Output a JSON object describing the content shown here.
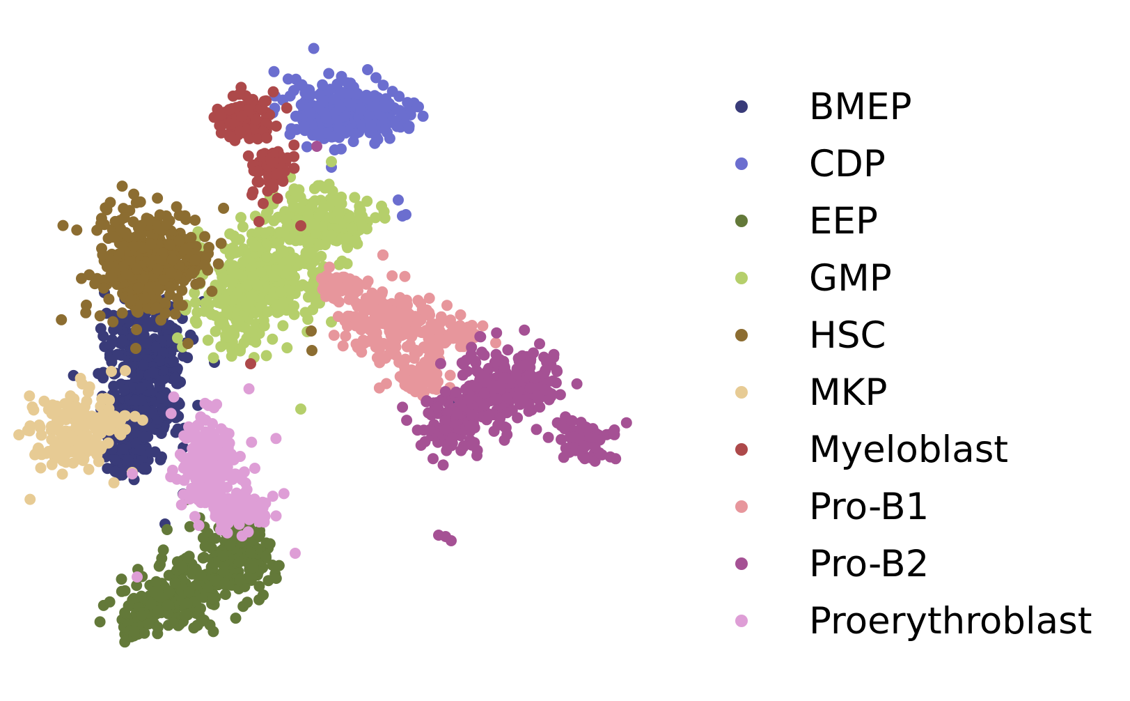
{
  "chart_data": {
    "type": "scatter",
    "title": "",
    "xlabel": "",
    "ylabel": "",
    "axes_visible": false,
    "grid": false,
    "legend_position": "right",
    "series": [
      {
        "name": "BMEP",
        "color": "#393b79",
        "clusters": [
          {
            "cx": 210,
            "cy": 500,
            "sx": 40,
            "sy": 45,
            "n": 200
          },
          {
            "cx": 205,
            "cy": 590,
            "sx": 38,
            "sy": 40,
            "n": 170
          },
          {
            "cx": 180,
            "cy": 650,
            "sx": 25,
            "sy": 20,
            "n": 60
          }
        ],
        "points": [
          [
            150,
            420
          ],
          [
            655,
            575
          ],
          [
            308,
            520
          ],
          [
            263,
            709
          ],
          [
            237,
            752
          ],
          [
            485,
            340
          ]
        ]
      },
      {
        "name": "CDP",
        "color": "#6b6ecf",
        "clusters": [
          {
            "cx": 470,
            "cy": 160,
            "sx": 45,
            "sy": 30,
            "n": 160
          },
          {
            "cx": 545,
            "cy": 165,
            "sx": 35,
            "sy": 25,
            "n": 120
          }
        ],
        "points": [
          [
            528,
            100
          ],
          [
            572,
            287
          ],
          [
            578,
            310
          ],
          [
            583,
            308
          ],
          [
            476,
            240
          ]
        ]
      },
      {
        "name": "EEP",
        "color": "#637939",
        "clusters": [
          {
            "cx": 330,
            "cy": 800,
            "sx": 40,
            "sy": 40,
            "n": 170
          },
          {
            "cx": 250,
            "cy": 860,
            "sx": 45,
            "sy": 30,
            "n": 160
          },
          {
            "cx": 200,
            "cy": 890,
            "sx": 20,
            "sy": 20,
            "n": 40
          }
        ],
        "points": [
          [
            240,
            760
          ],
          [
            268,
            717
          ]
        ]
      },
      {
        "name": "GMP",
        "color": "#b5cf6b",
        "clusters": [
          {
            "cx": 460,
            "cy": 320,
            "sx": 45,
            "sy": 30,
            "n": 180
          },
          {
            "cx": 380,
            "cy": 390,
            "sx": 50,
            "sy": 50,
            "n": 260
          },
          {
            "cx": 330,
            "cy": 450,
            "sx": 35,
            "sy": 40,
            "n": 100
          }
        ],
        "points": [
          [
            432,
            587
          ],
          [
            476,
            462
          ],
          [
            392,
            279
          ],
          [
            476,
            232
          ],
          [
            255,
            485
          ]
        ]
      },
      {
        "name": "HSC",
        "color": "#8c6d31",
        "clusters": [
          {
            "cx": 215,
            "cy": 380,
            "sx": 50,
            "sy": 50,
            "n": 380
          }
        ],
        "points": [
          [
            447,
            475
          ],
          [
            448,
            503
          ],
          [
            300,
            355
          ],
          [
            195,
            500
          ],
          [
            270,
            493
          ]
        ]
      },
      {
        "name": "MKP",
        "color": "#e7cb94",
        "clusters": [
          {
            "cx": 110,
            "cy": 615,
            "sx": 45,
            "sy": 38,
            "n": 170
          }
        ],
        "points": [
          [
            180,
            532
          ],
          [
            160,
            533
          ],
          [
            190,
            678
          ]
        ]
      },
      {
        "name": "Myeloblast",
        "color": "#ad494a",
        "clusters": [
          {
            "cx": 350,
            "cy": 170,
            "sx": 25,
            "sy": 20,
            "n": 140
          },
          {
            "cx": 390,
            "cy": 240,
            "sx": 18,
            "sy": 25,
            "n": 60
          }
        ],
        "points": [
          [
            360,
            522
          ],
          [
            378,
            292
          ],
          [
            432,
            324
          ],
          [
            550,
            366
          ],
          [
            372,
            318
          ]
        ]
      },
      {
        "name": "Pro-B1",
        "color": "#e7969c",
        "clusters": [
          {
            "cx": 560,
            "cy": 465,
            "sx": 45,
            "sy": 30,
            "n": 200
          },
          {
            "cx": 600,
            "cy": 540,
            "sx": 25,
            "sy": 25,
            "n": 60
          },
          {
            "cx": 490,
            "cy": 410,
            "sx": 20,
            "sy": 15,
            "n": 50
          },
          {
            "cx": 650,
            "cy": 480,
            "sx": 25,
            "sy": 12,
            "n": 40
          }
        ],
        "points": [
          [
            678,
            467
          ],
          [
            712,
            492
          ],
          [
            550,
            366
          ]
        ]
      },
      {
        "name": "Pro-B2",
        "color": "#a55194",
        "clusters": [
          {
            "cx": 740,
            "cy": 545,
            "sx": 50,
            "sy": 35,
            "n": 200
          },
          {
            "cx": 650,
            "cy": 610,
            "sx": 35,
            "sy": 30,
            "n": 120
          },
          {
            "cx": 840,
            "cy": 630,
            "sx": 25,
            "sy": 18,
            "n": 70
          }
        ],
        "points": [
          [
            630,
            768
          ],
          [
            640,
            770
          ],
          [
            648,
            776
          ],
          [
            455,
            210
          ]
        ]
      },
      {
        "name": "Proerythroblast",
        "color": "#de9ed6",
        "clusters": [
          {
            "cx": 300,
            "cy": 660,
            "sx": 30,
            "sy": 45,
            "n": 200
          },
          {
            "cx": 345,
            "cy": 730,
            "sx": 35,
            "sy": 20,
            "n": 90
          }
        ],
        "points": [
          [
            424,
            794
          ],
          [
            197,
            828
          ],
          [
            190,
            680
          ],
          [
            345,
            655
          ],
          [
            366,
            672
          ]
        ]
      }
    ]
  }
}
